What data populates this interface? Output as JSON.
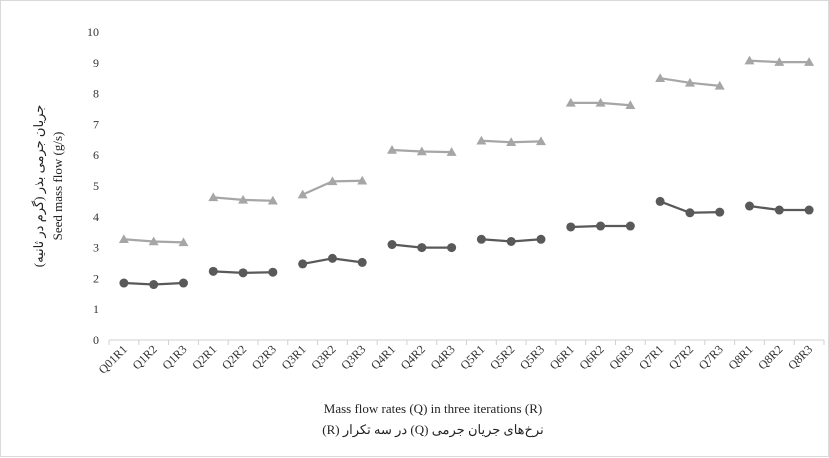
{
  "chart_data": {
    "type": "line",
    "title": "",
    "xlabel": "Mass flow rates (Q) in three iterations (R)",
    "xlabel_fa": "نرخ‌های جریان جرمی (Q) در سه تکرار (R)",
    "ylabel": "Seed mass flow (g/s)",
    "ylabel_fa": "جریان جرمی بذر (گرم در ثانیه)",
    "ylim": [
      0,
      10
    ],
    "yticks": [
      "0",
      "1",
      "2",
      "3",
      "4",
      "5",
      "6",
      "7",
      "8",
      "9",
      "10"
    ],
    "grid": false,
    "legend": "none",
    "categories": [
      "Q01R1",
      "Q1R2",
      "Q1R3",
      "Q2R1",
      "Q2R2",
      "Q2R3",
      "Q3R1",
      "Q3R2",
      "Q3R3",
      "Q4R1",
      "Q4R2",
      "Q4R3",
      "Q5R1",
      "Q5R2",
      "Q5R3",
      "Q6R1",
      "Q6R2",
      "Q6R3",
      "Q7R1",
      "Q7R2",
      "Q7R3",
      "Q8R1",
      "Q8R2",
      "Q8R3"
    ],
    "group_size": 3,
    "series": [
      {
        "marker": "circle",
        "color": "#595959",
        "values": [
          1.85,
          1.8,
          1.85,
          2.23,
          2.18,
          2.2,
          2.47,
          2.65,
          2.52,
          3.1,
          3.0,
          3.0,
          3.27,
          3.2,
          3.27,
          3.67,
          3.7,
          3.7,
          4.5,
          4.13,
          4.15,
          4.35,
          4.22,
          4.22
        ]
      },
      {
        "marker": "triangle",
        "color": "#a6a6a6",
        "values": [
          3.27,
          3.2,
          3.17,
          4.63,
          4.55,
          4.52,
          4.72,
          5.15,
          5.17,
          6.17,
          6.12,
          6.1,
          6.47,
          6.42,
          6.45,
          7.7,
          7.7,
          7.62,
          8.5,
          8.35,
          8.25,
          9.07,
          9.02,
          9.02
        ]
      }
    ]
  }
}
